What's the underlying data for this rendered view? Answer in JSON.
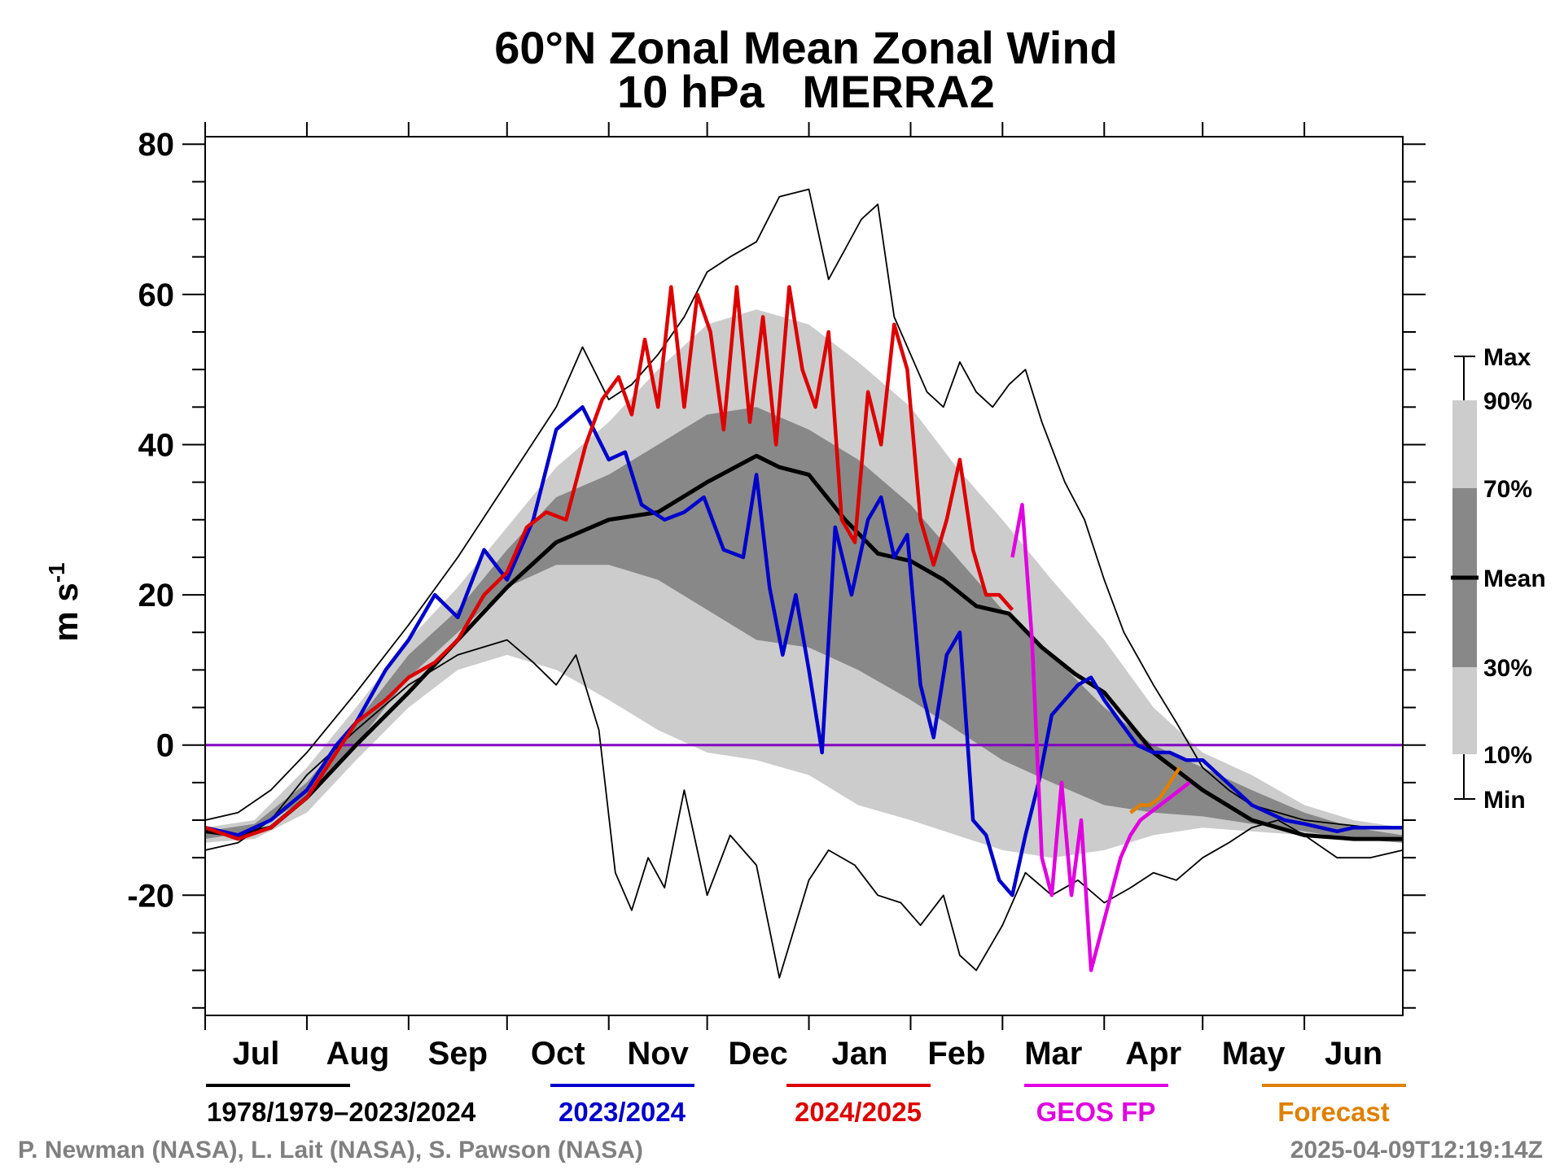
{
  "chart_data": {
    "type": "line",
    "title": "60°N Zonal Mean Zonal Wind",
    "subtitle": "10 hPa   MERRA2",
    "ylabel": "m s-1",
    "ylabel_main": "m s",
    "ylabel_sup": "-1",
    "xlabel": "",
    "ylim": [
      -36,
      81
    ],
    "xlim": [
      0,
      365
    ],
    "y_ticks": [
      -20,
      0,
      20,
      40,
      60,
      80
    ],
    "y_tick_labels": [
      "-20",
      "0",
      "20",
      "40",
      "60",
      "80"
    ],
    "x_month_starts": [
      0,
      31,
      62,
      92,
      123,
      153,
      184,
      215,
      243,
      274,
      304,
      335
    ],
    "months": [
      "Jul",
      "Aug",
      "Sep",
      "Oct",
      "Nov",
      "Dec",
      "Jan",
      "Feb",
      "Mar",
      "Apr",
      "May",
      "Jun"
    ],
    "zero_line": {
      "y": 0,
      "color": "#8000c0"
    },
    "grid": false,
    "band_x": [
      0,
      15,
      31,
      46,
      62,
      77,
      92,
      107,
      123,
      138,
      153,
      168,
      184,
      199,
      215,
      229,
      243,
      258,
      274,
      289,
      304,
      319,
      335,
      350,
      365
    ],
    "bands": {
      "p10": [
        -13,
        -12.5,
        -9,
        -2,
        5,
        10,
        12,
        10,
        6,
        2,
        -1,
        -2,
        -4,
        -8,
        -10,
        -12,
        -14,
        -15,
        -14,
        -12,
        -11,
        -11.5,
        -12,
        -12.5,
        -13
      ],
      "p30": [
        -12.5,
        -11.5,
        -7,
        0,
        9,
        15,
        21,
        24,
        24,
        22,
        18,
        14,
        13,
        10,
        6,
        2,
        -2,
        -5,
        -8,
        -9,
        -9.5,
        -10.5,
        -11.5,
        -12.5,
        -13
      ],
      "p70": [
        -11.5,
        -10.5,
        -5,
        3,
        12,
        18,
        26,
        33,
        36,
        40,
        44,
        45,
        42,
        38,
        32,
        25,
        18,
        12,
        5,
        0,
        -3,
        -6,
        -9,
        -11,
        -12
      ],
      "p90": [
        -11,
        -10,
        -3,
        5,
        14,
        21,
        29,
        37,
        43,
        50,
        56,
        58,
        56,
        51,
        45,
        37,
        30,
        22,
        14,
        5,
        -1,
        -4,
        -8,
        -10,
        -11
      ]
    },
    "series": [
      {
        "name": "1978/1979–2023/2024",
        "role": "mean",
        "color": "#000000",
        "x": [
          0,
          10,
          20,
          31,
          46,
          62,
          77,
          92,
          107,
          123,
          138,
          153,
          168,
          175,
          184,
          195,
          205,
          215,
          225,
          235,
          245,
          255,
          265,
          274,
          289,
          304,
          319,
          335,
          350,
          365
        ],
        "values": [
          -11.5,
          -12,
          -11,
          -7,
          0,
          7,
          14,
          21,
          27,
          30,
          31,
          35,
          38.5,
          37,
          36,
          30,
          25.5,
          24.5,
          22,
          18.5,
          17.5,
          13,
          9.5,
          7,
          -1,
          -6,
          -10,
          -12,
          -12.5,
          -12.5
        ]
      },
      {
        "name": "Max",
        "role": "max",
        "color": "#000000",
        "x": [
          0,
          10,
          20,
          31,
          46,
          62,
          77,
          92,
          107,
          115,
          123,
          130,
          138,
          146,
          153,
          160,
          168,
          175,
          184,
          190,
          195,
          200,
          205,
          210,
          215,
          220,
          225,
          230,
          235,
          240,
          245,
          250,
          255,
          262,
          268,
          274,
          280,
          289,
          296,
          304,
          312,
          319,
          327,
          335,
          345,
          355,
          365
        ],
        "values": [
          -10,
          -9,
          -6,
          -1,
          7,
          16,
          25,
          35,
          45,
          53,
          46,
          48,
          52,
          57,
          63,
          65,
          67,
          73,
          74,
          62,
          66,
          70,
          72,
          57,
          52,
          47,
          45,
          51,
          47,
          45,
          48,
          50,
          43,
          35,
          30,
          22,
          15,
          8,
          3,
          -3,
          -6,
          -8,
          -9,
          -10,
          -10.5,
          -11,
          -11
        ]
      },
      {
        "name": "Min",
        "role": "min",
        "color": "#000000",
        "x": [
          0,
          10,
          20,
          31,
          46,
          62,
          77,
          92,
          100,
          107,
          113,
          120,
          125,
          130,
          135,
          140,
          146,
          153,
          160,
          168,
          175,
          184,
          190,
          198,
          205,
          212,
          218,
          225,
          230,
          235,
          243,
          250,
          258,
          266,
          274,
          282,
          289,
          296,
          304,
          312,
          319,
          327,
          335,
          345,
          355,
          365
        ],
        "values": [
          -14,
          -13,
          -10,
          -4,
          2,
          8,
          12,
          14,
          11,
          8,
          12,
          2,
          -17,
          -22,
          -15,
          -19,
          -6,
          -20,
          -12,
          -16,
          -31,
          -18,
          -14,
          -16,
          -20,
          -21,
          -24,
          -20,
          -28,
          -30,
          -24,
          -17,
          -20,
          -18,
          -21,
          -19,
          -17,
          -18,
          -15,
          -13,
          -11,
          -10,
          -12,
          -15,
          -15,
          -14
        ]
      },
      {
        "name": "2023/2024",
        "role": "year",
        "color": "#0000cc",
        "x": [
          0,
          10,
          20,
          31,
          40,
          46,
          55,
          62,
          70,
          77,
          85,
          92,
          100,
          107,
          115,
          123,
          128,
          133,
          140,
          146,
          152,
          158,
          164,
          168,
          172,
          176,
          180,
          184,
          188,
          192,
          197,
          202,
          206,
          210,
          214,
          218,
          222,
          226,
          230,
          234,
          238,
          242,
          246,
          250,
          254,
          258,
          262,
          266,
          270,
          274,
          279,
          284,
          289,
          294,
          299,
          304,
          309,
          314,
          319,
          324,
          329,
          335,
          340,
          345,
          350,
          355,
          360,
          365
        ],
        "values": [
          -11,
          -12,
          -10,
          -6,
          0,
          3,
          10,
          14,
          20,
          17,
          26,
          22,
          30,
          42,
          45,
          38,
          39,
          32,
          30,
          31,
          33,
          26,
          25,
          36,
          21,
          12,
          20,
          10,
          -1,
          29,
          20,
          30,
          33,
          25,
          28,
          8,
          1,
          12,
          15,
          -10,
          -12,
          -18,
          -20,
          -12,
          -5,
          4,
          6,
          8,
          9,
          6,
          3,
          0,
          -1,
          -1,
          -2,
          -2,
          -4,
          -6,
          -8,
          -9,
          -10,
          -10.5,
          -11,
          -11.5,
          -11,
          -11,
          -11,
          -11
        ]
      },
      {
        "name": "2024/2025",
        "role": "year",
        "color": "#dd0000",
        "x": [
          0,
          10,
          20,
          31,
          40,
          46,
          55,
          62,
          70,
          77,
          85,
          92,
          98,
          104,
          110,
          116,
          121,
          126,
          130,
          134,
          138,
          142,
          146,
          150,
          154,
          158,
          162,
          166,
          170,
          174,
          178,
          182,
          186,
          190,
          194,
          198,
          202,
          206,
          210,
          214,
          218,
          222,
          226,
          230,
          234,
          238,
          242,
          246
        ],
        "values": [
          -11,
          -12.5,
          -11,
          -7,
          -1,
          3,
          6,
          9,
          11,
          14,
          20,
          23,
          29,
          31,
          30,
          40,
          46,
          49,
          44,
          54,
          45,
          61,
          45,
          60,
          55,
          42,
          61,
          43,
          57,
          40,
          61,
          50,
          45,
          55,
          30,
          27,
          47,
          40,
          56,
          50,
          30,
          24,
          30,
          38,
          26,
          20,
          20,
          18
        ],
        "override_vals_note": ""
      },
      {
        "name": "GEOS FP",
        "role": "analysis",
        "color": "#e000e0",
        "x": [
          246,
          249,
          252,
          255,
          258,
          261,
          264,
          267,
          270,
          273,
          276,
          279,
          282,
          285,
          288,
          291,
          294,
          297,
          300
        ],
        "values": [
          25,
          32,
          14,
          -15,
          -20,
          -5,
          -20,
          -10,
          -30,
          -25,
          -20,
          -15,
          -12,
          -10,
          -9,
          -8,
          -7,
          -6,
          -5
        ]
      },
      {
        "name": "Forecast",
        "role": "forecast",
        "color": "#e08000",
        "x": [
          282,
          285,
          288,
          291,
          294,
          297
        ],
        "values": [
          -9,
          -8,
          -8,
          -7,
          -5,
          -3
        ]
      }
    ],
    "side_legend": {
      "labels": [
        "Max",
        "90%",
        "70%",
        "Mean",
        "30%",
        "10%",
        "Min"
      ]
    },
    "bottom_legend": [
      {
        "name": "1978/1979–2023/2024",
        "color": "#000000"
      },
      {
        "name": "2023/2024",
        "color": "#0000cc"
      },
      {
        "name": "2024/2025",
        "color": "#dd0000"
      },
      {
        "name": "GEOS FP",
        "color": "#e000e0"
      },
      {
        "name": "Forecast",
        "color": "#e08000"
      }
    ]
  },
  "credits": {
    "authors": "P. Newman (NASA), L. Lait (NASA), S. Pawson (NASA)",
    "timestamp": "2025-04-09T12:19:14Z"
  }
}
